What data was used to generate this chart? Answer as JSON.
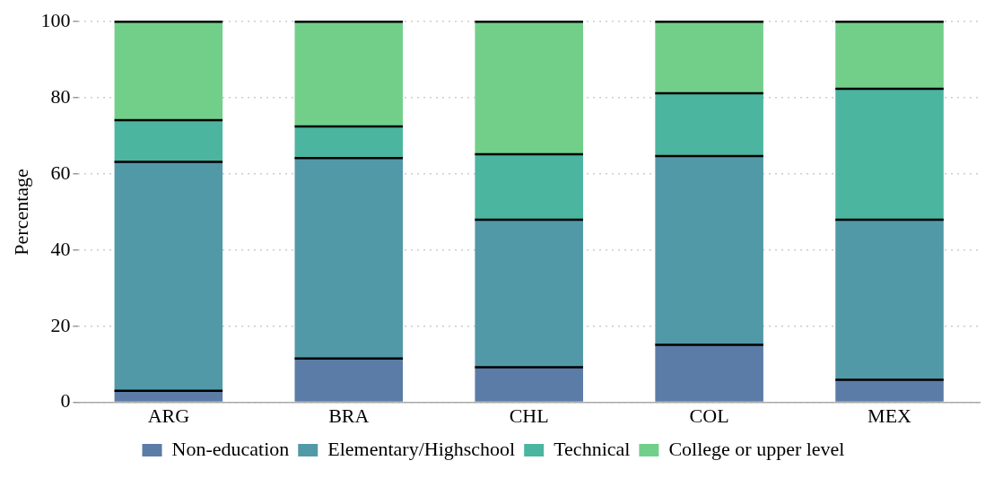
{
  "chart_data": {
    "type": "bar",
    "ylabel": "Percentage",
    "categories": [
      "ARG",
      "BRA",
      "CHL",
      "COL",
      "MEX"
    ],
    "series": [
      {
        "name": "Non-education",
        "color": "#5b7ca6",
        "values": [
          3,
          11.5,
          9.2,
          15.1,
          5.9
        ]
      },
      {
        "name": "Elementary/Highschool",
        "color": "#5299a8",
        "values": [
          60.2,
          52.7,
          38.8,
          49.6,
          42.1
        ]
      },
      {
        "name": "Technical",
        "color": "#4cb5a0",
        "values": [
          10.9,
          8.3,
          17.2,
          16.5,
          34.4
        ]
      },
      {
        "name": "College or upper level",
        "color": "#72cf8a",
        "values": [
          25.9,
          27.5,
          34.8,
          18.8,
          17.6
        ]
      }
    ],
    "stacked": true,
    "ylim": [
      0,
      100
    ],
    "yticks": [
      0,
      20,
      40,
      60,
      80,
      100
    ],
    "grid": "y",
    "legend": "bottom"
  }
}
